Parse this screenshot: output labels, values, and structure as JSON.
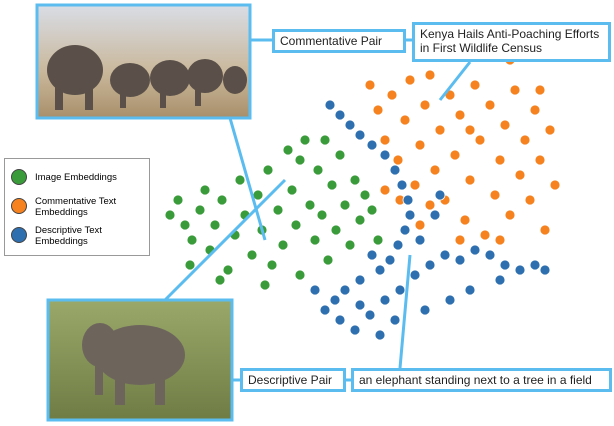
{
  "chart_data": {
    "type": "scatter",
    "series": [
      {
        "name": "Image Embeddings",
        "color": "#3a9b3a",
        "x": [
          170,
          178,
          185,
          192,
          200,
          205,
          210,
          215,
          222,
          228,
          235,
          240,
          245,
          252,
          258,
          262,
          268,
          272,
          278,
          283,
          288,
          292,
          296,
          300,
          305,
          310,
          315,
          318,
          322,
          328,
          332,
          336,
          340,
          345,
          350,
          355,
          360,
          365,
          372,
          378,
          190,
          220,
          265,
          300,
          325
        ],
        "y": [
          215,
          200,
          225,
          240,
          210,
          190,
          250,
          225,
          200,
          270,
          235,
          180,
          215,
          255,
          195,
          230,
          170,
          265,
          210,
          245,
          150,
          190,
          225,
          275,
          140,
          205,
          240,
          170,
          215,
          260,
          185,
          230,
          155,
          205,
          245,
          180,
          220,
          195,
          210,
          240,
          265,
          280,
          285,
          160,
          140
        ]
      },
      {
        "name": "Commentative Text Embeddings",
        "color": "#f5821f",
        "x": [
          370,
          378,
          385,
          392,
          398,
          405,
          410,
          415,
          420,
          425,
          430,
          435,
          440,
          445,
          450,
          455,
          460,
          465,
          470,
          475,
          480,
          485,
          490,
          495,
          500,
          505,
          510,
          515,
          520,
          525,
          530,
          535,
          540,
          545,
          550,
          555,
          400,
          420,
          460,
          500,
          385,
          430,
          470,
          510,
          540
        ],
        "y": [
          85,
          110,
          140,
          95,
          160,
          120,
          80,
          185,
          145,
          105,
          75,
          170,
          130,
          200,
          95,
          155,
          115,
          220,
          180,
          85,
          140,
          235,
          105,
          195,
          160,
          125,
          215,
          90,
          175,
          140,
          200,
          110,
          160,
          230,
          130,
          185,
          200,
          225,
          240,
          240,
          190,
          205,
          130,
          60,
          90
        ]
      },
      {
        "name": "Descriptive Text Embeddings",
        "color": "#2e6fb0",
        "x": [
          330,
          340,
          350,
          360,
          372,
          385,
          395,
          402,
          408,
          410,
          405,
          398,
          390,
          380,
          372,
          360,
          345,
          335,
          325,
          340,
          355,
          370,
          385,
          400,
          415,
          430,
          445,
          460,
          475,
          490,
          505,
          520,
          535,
          545,
          420,
          435,
          440,
          450,
          470,
          500,
          380,
          360,
          315,
          425,
          395
        ],
        "y": [
          105,
          115,
          125,
          135,
          145,
          155,
          170,
          185,
          200,
          215,
          230,
          245,
          260,
          270,
          255,
          280,
          290,
          300,
          310,
          320,
          330,
          315,
          300,
          290,
          275,
          265,
          255,
          260,
          250,
          255,
          265,
          270,
          265,
          270,
          240,
          215,
          195,
          300,
          290,
          280,
          335,
          305,
          290,
          310,
          320
        ]
      }
    ],
    "annotations": [
      "Commentative Pair",
      "Kenya Hails Anti-Poaching Efforts in First Wildlife Census",
      "Descriptive Pair",
      "an elephant standing next to a tree in a field"
    ]
  }
}
